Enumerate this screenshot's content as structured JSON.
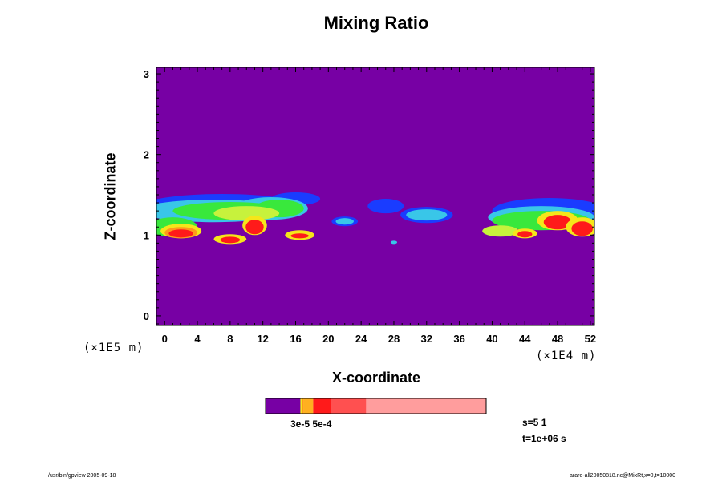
{
  "colors": {
    "background_field": "#7700a4",
    "blue": "#1a3cff",
    "cyan": "#39c6e8",
    "green": "#39e83c",
    "yellow_green": "#c7f23c",
    "yellow": "#f5e61a",
    "orange": "#ff9a1a",
    "red": "#ff1a1a",
    "light_red": "#ff5050",
    "pink": "#ff9d9d"
  },
  "chart_data": {
    "type": "heatmap",
    "title": "Mixing Ratio",
    "xlabel": "X-coordinate",
    "ylabel": "Z-coordinate",
    "x_unit": "(×1E4 m)",
    "y_unit": "(×1E5 m)",
    "x_ticks": [
      "0",
      "4",
      "8",
      "12",
      "16",
      "20",
      "24",
      "28",
      "32",
      "36",
      "40",
      "44",
      "48",
      "52"
    ],
    "y_ticks": [
      "0",
      "1",
      "2",
      "3"
    ],
    "xlim": [
      -1,
      52.5
    ],
    "ylim": [
      -0.12,
      3.08
    ],
    "colorbar": {
      "label": "3e-5 5e-4",
      "segments": [
        {
          "value": 0.0,
          "color": "#7700a4",
          "width": 0.158
        },
        {
          "value": 0.0,
          "color": "#f5e61a",
          "width": 0.006
        },
        {
          "value": 0.0,
          "color": "#ff9a1a",
          "width": 0.007
        },
        {
          "value": 0.0,
          "color": "#ffb020",
          "width": 0.045
        },
        {
          "value": 0.0,
          "color": "#ff1a1a",
          "width": 0.08
        },
        {
          "value": 0.0,
          "color": "#ff5050",
          "width": 0.16
        },
        {
          "value": 0.0,
          "color": "#ff9d9d",
          "width": 0.544
        }
      ]
    }
  },
  "info": {
    "s_label": "s=5 1",
    "t_label": "t=1e+06 s"
  },
  "footer": {
    "left": "/usr/bin/gpview 2005-09-18",
    "right": "arare-all20050818.nc@MixRt,x=0,t=10000"
  }
}
